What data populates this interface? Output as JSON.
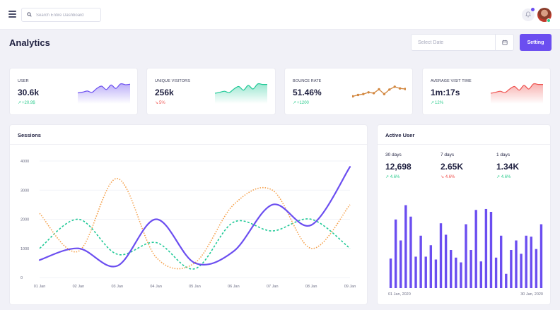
{
  "search": {
    "placeholder": "Search Entire Dashboard"
  },
  "page": {
    "title": "Analytics"
  },
  "date_picker": {
    "placeholder": "Select Date"
  },
  "setting_button": "Setting",
  "colors": {
    "accent": "#6b4ef0",
    "positive": "#2ecc8f",
    "negative": "#ef5350",
    "orange": "#f5a04a",
    "teal": "#20c997"
  },
  "stats": [
    {
      "label": "USER",
      "value": "30.6k",
      "delta": "+20.9$",
      "trend": "up",
      "color": "#6b4ef0",
      "style": "area",
      "spark": [
        0.15,
        0.22,
        0.32,
        0.2,
        0.55,
        0.75,
        0.45,
        0.85,
        0.55,
        0.95,
        0.88,
        0.92
      ]
    },
    {
      "label": "UNIQUE VISITORS",
      "value": "256k",
      "delta": "5%",
      "trend": "down",
      "color": "#20c997",
      "style": "area",
      "spark": [
        0.12,
        0.2,
        0.3,
        0.18,
        0.5,
        0.72,
        0.4,
        0.82,
        0.5,
        0.95,
        0.9,
        0.9
      ]
    },
    {
      "label": "BOUNCE RATE",
      "value": "51.46%",
      "delta": "+1200",
      "trend": "up",
      "color": "#d2873f",
      "style": "dots",
      "spark": [
        0.1,
        0.22,
        0.3,
        0.45,
        0.38,
        0.72,
        0.3,
        0.7,
        0.95,
        0.8,
        0.75
      ]
    },
    {
      "label": "AVERAGE VISIT TIME",
      "value": "1m:17s",
      "delta": "12%",
      "trend": "up",
      "color": "#ef5350",
      "style": "area",
      "spark": [
        0.12,
        0.2,
        0.3,
        0.18,
        0.5,
        0.72,
        0.4,
        0.82,
        0.5,
        0.95,
        0.9,
        0.9
      ]
    }
  ],
  "sessions": {
    "title": "Sessions"
  },
  "active_user": {
    "title": "Active User",
    "columns": [
      {
        "label": "30 days",
        "value": "12,698",
        "delta": "4.6%",
        "trend": "up"
      },
      {
        "label": "7 days",
        "value": "2.65K",
        "delta": "4.6%",
        "trend": "down"
      },
      {
        "label": "1 days",
        "value": "1.34K",
        "delta": "4.6%",
        "trend": "up"
      }
    ],
    "x_start": "01 Jan, 2020",
    "x_end": "30 Jan, 2020"
  },
  "chart_data": [
    {
      "type": "line",
      "title": "Sessions",
      "categories": [
        "01 Jan",
        "02 Jan",
        "03 Jan",
        "04 Jan",
        "05 Jan",
        "06 Jan",
        "07 Jan",
        "08 Jan",
        "09 Jan"
      ],
      "ylim": [
        0,
        4000
      ],
      "yticks": [
        0,
        1000,
        2000,
        3000,
        4000
      ],
      "grid": true,
      "series": [
        {
          "color": "#6b4ef0",
          "style": "solid",
          "values": [
            600,
            1000,
            400,
            2000,
            500,
            900,
            2500,
            1800,
            3800
          ]
        },
        {
          "color": "#f5a04a",
          "style": "dotted",
          "values": [
            2200,
            900,
            3400,
            700,
            500,
            2500,
            3000,
            1000,
            2500
          ]
        },
        {
          "color": "#20c997",
          "style": "dashed",
          "values": [
            1000,
            2000,
            800,
            1200,
            300,
            1900,
            1600,
            2000,
            1000
          ]
        }
      ]
    },
    {
      "type": "bar",
      "title": "Active User",
      "color": "#6b4ef0",
      "values": [
        0.31,
        0.72,
        0.5,
        0.87,
        0.75,
        0.33,
        0.55,
        0.33,
        0.45,
        0.3,
        0.68,
        0.56,
        0.4,
        0.32,
        0.27,
        0.67,
        0.4,
        0.82,
        0.28,
        0.83,
        0.8,
        0.32,
        0.55,
        0.15,
        0.4,
        0.5,
        0.36,
        0.55,
        0.54,
        0.41,
        0.67
      ]
    }
  ]
}
